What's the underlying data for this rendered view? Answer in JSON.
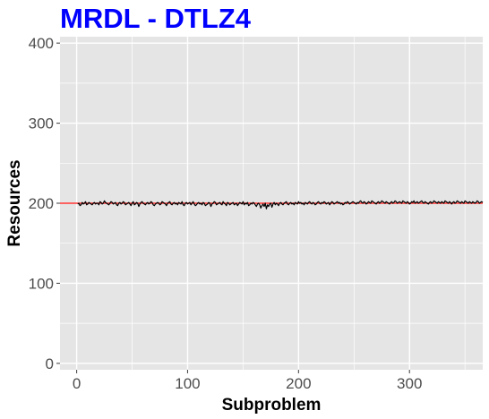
{
  "colors": {
    "title": "#0000ff",
    "panel_bg": "#e5e5e5",
    "grid": "#ffffff",
    "series": "#000000",
    "reference_line": "#ff3333",
    "tick": "#4d4d4d"
  },
  "chart_data": {
    "type": "line",
    "title": "MRDL - DTLZ4",
    "xlabel": "Subproblem",
    "ylabel": "Resources",
    "xlim": [
      -15,
      366
    ],
    "ylim": [
      -8,
      408
    ],
    "x_ticks": [
      "0",
      "100",
      "200",
      "300"
    ],
    "x_tick_values": [
      0,
      100,
      200,
      300
    ],
    "y_ticks": [
      "0",
      "100",
      "200",
      "300",
      "400"
    ],
    "y_tick_values": [
      0,
      100,
      200,
      300,
      400
    ],
    "grid": true,
    "reference_line": {
      "y": 200
    },
    "series": [
      {
        "x_start": 1,
        "x_step": 1,
        "values": [
          199,
          200,
          197,
          198,
          201,
          199,
          200,
          202,
          198,
          199,
          201,
          200,
          199,
          198,
          200,
          201,
          199,
          200,
          200,
          198,
          202,
          201,
          199,
          200,
          203,
          201,
          200,
          199,
          198,
          200,
          202,
          201,
          199,
          200,
          201,
          198,
          197,
          200,
          201,
          199,
          200,
          202,
          201,
          198,
          199,
          200,
          201,
          199,
          197,
          200,
          202,
          198,
          199,
          201,
          200,
          196,
          199,
          201,
          202,
          200,
          199,
          198,
          200,
          201,
          199,
          200,
          202,
          201,
          198,
          197,
          199,
          200,
          201,
          200,
          198,
          199,
          202,
          201,
          200,
          199,
          197,
          200,
          201,
          202,
          199,
          198,
          200,
          201,
          199,
          200,
          198,
          201,
          200,
          199,
          202,
          198,
          197,
          200,
          201,
          199,
          200,
          201,
          198,
          200,
          202,
          199,
          197,
          198,
          200,
          201,
          199,
          200,
          198,
          201,
          200,
          197,
          198,
          199,
          201,
          200,
          196,
          199,
          200,
          202,
          201,
          198,
          199,
          200,
          201,
          199,
          198,
          202,
          200,
          199,
          197,
          201,
          200,
          198,
          199,
          200,
          201,
          198,
          199,
          200,
          197,
          199,
          201,
          200,
          199,
          202,
          198,
          200,
          199,
          201,
          197,
          198,
          200,
          199,
          201,
          200,
          198,
          196,
          199,
          200,
          198,
          194,
          197,
          199,
          196,
          200,
          193,
          198,
          196,
          199,
          200,
          195,
          199,
          201,
          198,
          200,
          199,
          197,
          200,
          201,
          199,
          198,
          200,
          201,
          202,
          199,
          198,
          200,
          201,
          199,
          200,
          198,
          201,
          200,
          199,
          202,
          200,
          201,
          199,
          200,
          198,
          201,
          200,
          199,
          201,
          202,
          200,
          199,
          201,
          200,
          198,
          199,
          201,
          202,
          200,
          199,
          201,
          200,
          202,
          201,
          199,
          200,
          201,
          198,
          200,
          202,
          201,
          199,
          200,
          201,
          202,
          200,
          201,
          199,
          200,
          198,
          199,
          201,
          200,
          202,
          201,
          199,
          200,
          201,
          202,
          201,
          200,
          199,
          201,
          200,
          202,
          203,
          201,
          200,
          202,
          201,
          199,
          200,
          202,
          201,
          200,
          203,
          202,
          201,
          200,
          199,
          201,
          202,
          200,
          201,
          203,
          202,
          201,
          200,
          202,
          201,
          200,
          199,
          201,
          202,
          200,
          201,
          203,
          202,
          200,
          201,
          202,
          201,
          200,
          203,
          202,
          201,
          200,
          202,
          201,
          199,
          200,
          202,
          201,
          203,
          200,
          201,
          202,
          200,
          201,
          202,
          203,
          201,
          200,
          202,
          201,
          200,
          199,
          201,
          202,
          200,
          201,
          203,
          202,
          201,
          200,
          202,
          201,
          200,
          202,
          201,
          200,
          203,
          202,
          201,
          200,
          202,
          201,
          199,
          201,
          202,
          200,
          201,
          203,
          202,
          201,
          200,
          202,
          201,
          200,
          203,
          202,
          201,
          200,
          202,
          201,
          200,
          202,
          201,
          200,
          201,
          203,
          202,
          200,
          201,
          202,
          201
        ]
      }
    ]
  }
}
